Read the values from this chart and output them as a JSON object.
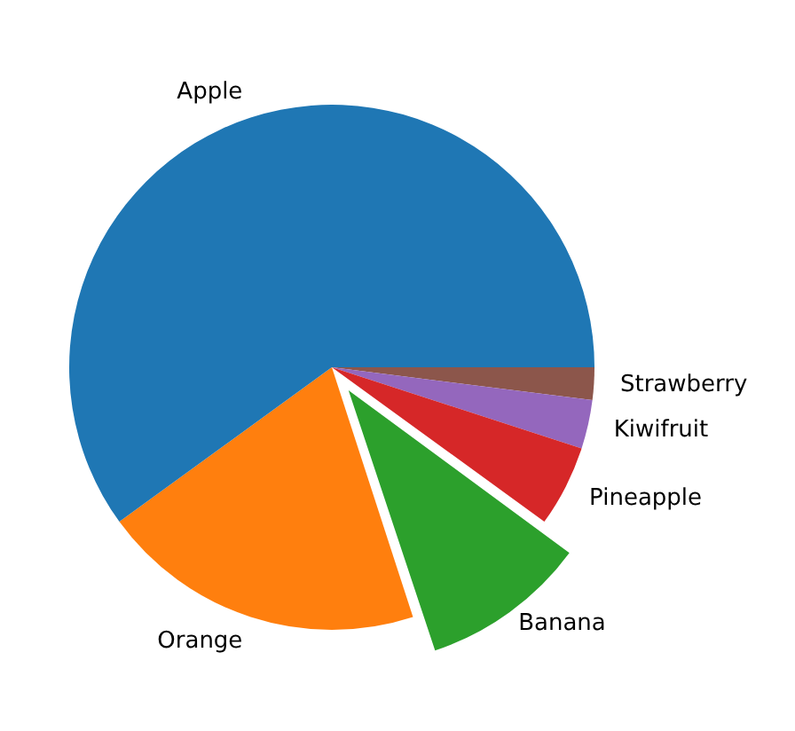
{
  "chart_data": {
    "type": "pie",
    "categories": [
      "Apple",
      "Orange",
      "Banana",
      "Pineapple",
      "Kiwifruit",
      "Strawberry"
    ],
    "values": [
      60,
      20,
      10,
      5,
      3,
      2
    ],
    "colors": [
      "#1f77b4",
      "#ff7f0e",
      "#2ca02c",
      "#d62728",
      "#9467bd",
      "#8c564b"
    ],
    "legend": false
  }
}
